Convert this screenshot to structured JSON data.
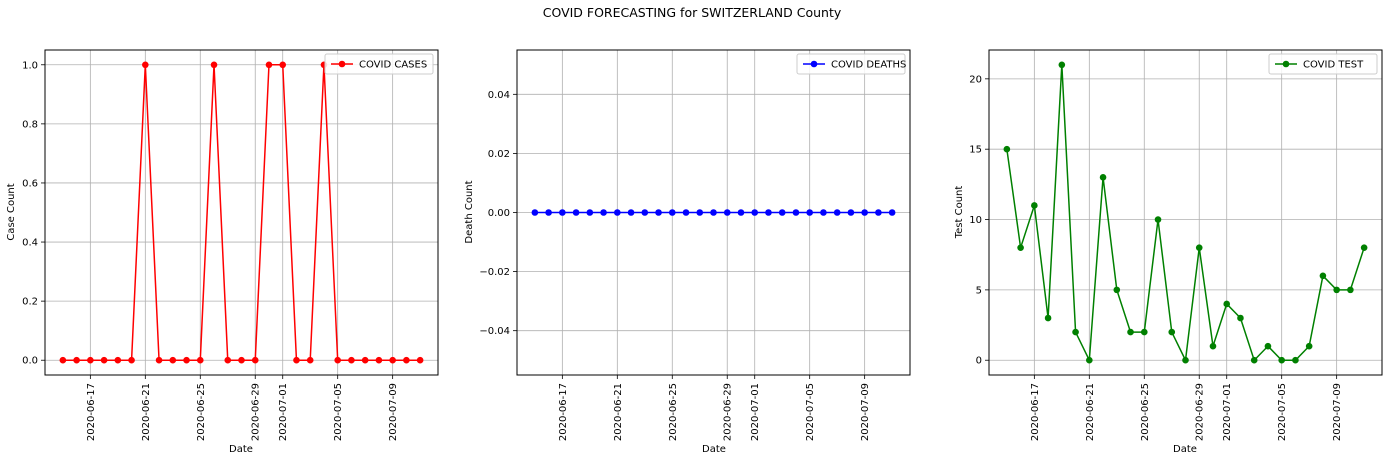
{
  "figure_title": "COVID FORECASTING for SWITZERLAND County",
  "chart_data": [
    {
      "type": "line",
      "title": "",
      "xlabel": "Date",
      "ylabel": "Case Count",
      "x": [
        "2020-06-15",
        "2020-06-16",
        "2020-06-17",
        "2020-06-18",
        "2020-06-19",
        "2020-06-20",
        "2020-06-21",
        "2020-06-22",
        "2020-06-23",
        "2020-06-24",
        "2020-06-25",
        "2020-06-26",
        "2020-06-27",
        "2020-06-28",
        "2020-06-29",
        "2020-06-30",
        "2020-07-01",
        "2020-07-02",
        "2020-07-03",
        "2020-07-04",
        "2020-07-05",
        "2020-07-06",
        "2020-07-07",
        "2020-07-08",
        "2020-07-09",
        "2020-07-10",
        "2020-07-11"
      ],
      "xticks": [
        "2020-06-17",
        "2020-06-21",
        "2020-06-25",
        "2020-06-29",
        "2020-07-01",
        "2020-07-05",
        "2020-07-09"
      ],
      "yticks": [
        "0.0",
        "0.2",
        "0.4",
        "0.6",
        "0.8",
        "1.0"
      ],
      "ylim": [
        -0.05,
        1.05
      ],
      "grid": true,
      "legend_position": "top-right",
      "series": [
        {
          "name": "COVID CASES",
          "color": "#ff0000",
          "values": [
            0,
            0,
            0,
            0,
            0,
            0,
            1,
            0,
            0,
            0,
            0,
            1,
            0,
            0,
            0,
            1,
            1,
            0,
            0,
            1,
            0,
            0,
            0,
            0,
            0,
            0,
            0
          ]
        }
      ]
    },
    {
      "type": "line",
      "title": "",
      "xlabel": "Date",
      "ylabel": "Death Count",
      "x": [
        "2020-06-15",
        "2020-06-16",
        "2020-06-17",
        "2020-06-18",
        "2020-06-19",
        "2020-06-20",
        "2020-06-21",
        "2020-06-22",
        "2020-06-23",
        "2020-06-24",
        "2020-06-25",
        "2020-06-26",
        "2020-06-27",
        "2020-06-28",
        "2020-06-29",
        "2020-06-30",
        "2020-07-01",
        "2020-07-02",
        "2020-07-03",
        "2020-07-04",
        "2020-07-05",
        "2020-07-06",
        "2020-07-07",
        "2020-07-08",
        "2020-07-09",
        "2020-07-10",
        "2020-07-11"
      ],
      "xticks": [
        "2020-06-17",
        "2020-06-21",
        "2020-06-25",
        "2020-06-29",
        "2020-07-01",
        "2020-07-05",
        "2020-07-09"
      ],
      "yticks": [
        "−0.04",
        "−0.02",
        "0.00",
        "0.02",
        "0.04"
      ],
      "ylim": [
        -0.055,
        0.055
      ],
      "grid": true,
      "legend_position": "top-right",
      "series": [
        {
          "name": "COVID DEATHS",
          "color": "#0000ff",
          "values": [
            0,
            0,
            0,
            0,
            0,
            0,
            0,
            0,
            0,
            0,
            0,
            0,
            0,
            0,
            0,
            0,
            0,
            0,
            0,
            0,
            0,
            0,
            0,
            0,
            0,
            0,
            0
          ]
        }
      ]
    },
    {
      "type": "line",
      "title": "",
      "xlabel": "Date",
      "ylabel": "Test Count",
      "x": [
        "2020-06-15",
        "2020-06-16",
        "2020-06-17",
        "2020-06-18",
        "2020-06-19",
        "2020-06-20",
        "2020-06-21",
        "2020-06-22",
        "2020-06-23",
        "2020-06-24",
        "2020-06-25",
        "2020-06-26",
        "2020-06-27",
        "2020-06-28",
        "2020-06-29",
        "2020-06-30",
        "2020-07-01",
        "2020-07-02",
        "2020-07-03",
        "2020-07-04",
        "2020-07-05",
        "2020-07-06",
        "2020-07-07",
        "2020-07-08",
        "2020-07-09",
        "2020-07-10",
        "2020-07-11"
      ],
      "xticks": [
        "2020-06-17",
        "2020-06-21",
        "2020-06-25",
        "2020-06-29",
        "2020-07-01",
        "2020-07-05",
        "2020-07-09"
      ],
      "yticks": [
        "0",
        "5",
        "10",
        "15",
        "20"
      ],
      "ylim": [
        -1.05,
        22.05
      ],
      "grid": true,
      "legend_position": "top-right",
      "series": [
        {
          "name": "COVID TEST",
          "color": "#008000",
          "values": [
            15,
            8,
            11,
            3,
            21,
            2,
            0,
            13,
            5,
            2,
            2,
            10,
            2,
            0,
            8,
            1,
            4,
            3,
            0,
            1,
            0,
            0,
            1,
            6,
            5,
            5,
            8
          ]
        }
      ]
    }
  ]
}
